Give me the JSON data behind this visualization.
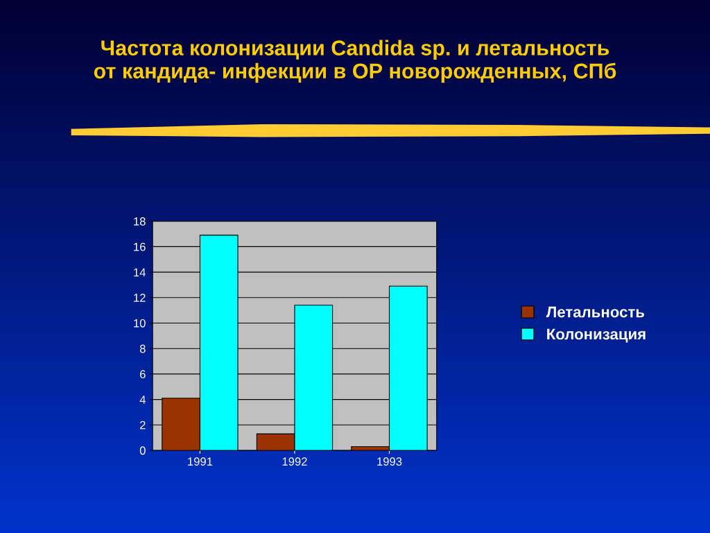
{
  "chart_data": {
    "type": "bar",
    "title": "Частота колонизации Candida sp. и летальность\nот кандида- инфекции в ОР новорожденных, СПб",
    "categories": [
      "1991",
      "1992",
      "1993"
    ],
    "series": [
      {
        "name": "Летальность",
        "color": "#993300",
        "values": [
          4.1,
          1.3,
          0.3
        ]
      },
      {
        "name": "Колонизация",
        "color": "#00ffff",
        "values": [
          16.9,
          11.4,
          12.9
        ]
      }
    ],
    "ylim": [
      0,
      18
    ],
    "yticks": [
      0,
      2,
      4,
      6,
      8,
      10,
      12,
      14,
      16,
      18
    ],
    "grid": "y",
    "legend": "right"
  }
}
